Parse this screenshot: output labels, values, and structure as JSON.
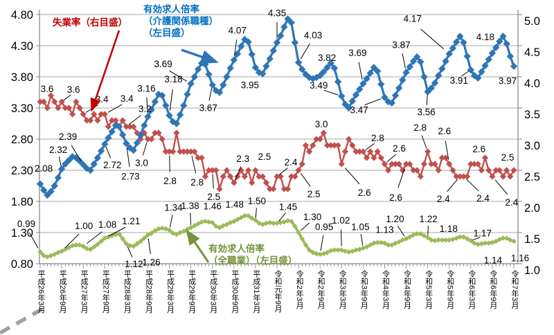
{
  "legend": {
    "unemployment": {
      "label": "失業率（右目盛）",
      "color": "#C00000"
    },
    "care_ratio": {
      "lines": [
        "有効求人倍率",
        "（介護関係職種）",
        "（左目盛）"
      ],
      "color": "#0070C0"
    },
    "all_jobs_ratio": {
      "lines": [
        "有効求人倍率",
        "（全職業）（左目盛）"
      ],
      "color": "#76923C"
    }
  },
  "chart_data": {
    "type": "line",
    "grid": true,
    "months_total": 133,
    "x_tick_labels": [
      "平成26年3月",
      "平成26年9月",
      "平成27年3月",
      "平成27年9月",
      "平成28年3月",
      "平成28年9月",
      "平成29年3月",
      "平成29年9月",
      "平成30年3月",
      "平成30年9月",
      "平成31年3月",
      "令和元年9月",
      "令和2年3月",
      "令和2年9月",
      "令和3年3月",
      "令和3年9月",
      "令和4年3月",
      "令和4年9月",
      "令和5年3月",
      "令和5年9月",
      "令和6年3月",
      "令和6年9月",
      "令和7年3月"
    ],
    "x_tick_month_indices": [
      0,
      6,
      12,
      18,
      24,
      30,
      36,
      42,
      48,
      54,
      60,
      66,
      72,
      78,
      84,
      90,
      96,
      102,
      108,
      114,
      120,
      126,
      132
    ],
    "left_axis": {
      "min": 0.8,
      "max": 4.8,
      "step": 0.5,
      "ticks": [
        "4.80",
        "4.30",
        "3.80",
        "3.30",
        "2.80",
        "2.30",
        "1.80",
        "1.30",
        "0.80"
      ]
    },
    "right_axis": {
      "min": 1.0,
      "max": 5.0,
      "step": 0.5,
      "ticks": [
        "5.0",
        "4.5",
        "4.0",
        "3.5",
        "3.0",
        "2.5",
        "2.0",
        "1.5",
        "1.0"
      ]
    },
    "series": [
      {
        "name": "有効求人倍率（介護関係職種）（左目盛）",
        "axis": "left",
        "color": "#2E75B6",
        "marker": "diamond",
        "values": [
          2.08,
          1.98,
          1.9,
          1.96,
          2.05,
          2.18,
          2.32,
          2.4,
          2.46,
          2.52,
          2.5,
          2.45,
          2.39,
          2.33,
          2.3,
          2.4,
          2.5,
          2.61,
          2.72,
          2.82,
          2.92,
          3.02,
          3.0,
          2.87,
          2.73,
          2.66,
          2.62,
          2.74,
          2.87,
          3.02,
          3.16,
          3.27,
          3.4,
          3.52,
          3.5,
          3.34,
          3.18,
          3.08,
          3.05,
          3.19,
          3.34,
          3.52,
          3.69,
          3.8,
          3.92,
          4.02,
          4.0,
          3.84,
          3.67,
          3.58,
          3.55,
          3.67,
          3.8,
          3.94,
          4.07,
          4.17,
          4.29,
          4.4,
          4.36,
          4.16,
          3.95,
          3.87,
          3.85,
          3.97,
          4.09,
          4.22,
          4.35,
          4.46,
          4.6,
          4.73,
          4.67,
          4.35,
          4.03,
          3.92,
          3.84,
          3.79,
          3.77,
          3.79,
          3.82,
          3.88,
          3.95,
          4.02,
          3.94,
          3.72,
          3.49,
          3.36,
          3.3,
          3.41,
          3.51,
          3.6,
          3.69,
          3.77,
          3.86,
          3.95,
          3.89,
          3.68,
          3.47,
          3.4,
          3.38,
          3.5,
          3.62,
          3.75,
          3.87,
          3.96,
          4.05,
          4.12,
          4.04,
          3.8,
          3.56,
          3.62,
          3.7,
          3.82,
          3.93,
          4.05,
          4.17,
          4.26,
          4.36,
          4.45,
          4.35,
          4.13,
          3.91,
          3.82,
          3.78,
          3.88,
          3.98,
          4.08,
          4.18,
          4.27,
          4.37,
          4.45,
          4.33,
          4.13,
          3.97
        ],
        "labels": [
          {
            "i": 0,
            "v": "2.08",
            "dx": 5,
            "dy": -18
          },
          {
            "i": 6,
            "v": "2.32",
            "dx": -5,
            "dy": -23
          },
          {
            "i": 12,
            "v": "2.39",
            "dx": -22,
            "dy": -36
          },
          {
            "i": 18,
            "v": "2.72",
            "dx": 11,
            "dy": 26
          },
          {
            "i": 24,
            "v": "2.73",
            "dx": 6,
            "dy": 43
          },
          {
            "i": 30,
            "v": "3.16",
            "dx": -2,
            "dy": -36
          },
          {
            "i": 36,
            "v": "3.18",
            "dx": 6,
            "dy": -48
          },
          {
            "i": 42,
            "v": "3.69",
            "dx": -40,
            "dy": -24
          },
          {
            "i": 48,
            "v": "3.67",
            "dx": -6,
            "dy": 29
          },
          {
            "i": 54,
            "v": "4.07",
            "dx": 5,
            "dy": -38
          },
          {
            "i": 60,
            "v": "3.95",
            "dx": -8,
            "dy": 21
          },
          {
            "i": 66,
            "v": "4.35",
            "dx": 0,
            "dy": -38
          },
          {
            "i": 72,
            "v": "4.03",
            "dx": 21,
            "dy": -35
          },
          {
            "i": 78,
            "v": "3.82",
            "dx": 10,
            "dy": -21
          },
          {
            "i": 84,
            "v": "3.49",
            "dx": -33,
            "dy": -11
          },
          {
            "i": 90,
            "v": "3.69",
            "dx": -8,
            "dy": -40
          },
          {
            "i": 96,
            "v": "3.47",
            "dx": -37,
            "dy": 14
          },
          {
            "i": 102,
            "v": "3.87",
            "dx": -7,
            "dy": -35
          },
          {
            "i": 108,
            "v": "3.56",
            "dx": -2,
            "dy": 25
          },
          {
            "i": 114,
            "v": "4.17",
            "dx": -53,
            "dy": -46
          },
          {
            "i": 120,
            "v": "3.91",
            "dx": -17,
            "dy": 11
          },
          {
            "i": 126,
            "v": "4.18",
            "dx": -10,
            "dy": -19
          },
          {
            "i": 132,
            "v": "3.97",
            "dx": -9,
            "dy": 17
          }
        ]
      },
      {
        "name": "失業率（右目盛）",
        "axis": "right",
        "color": "#C0504D",
        "marker": "diamond",
        "values": [
          3.6,
          3.6,
          3.5,
          3.7,
          3.6,
          3.5,
          3.6,
          3.5,
          3.5,
          3.4,
          3.6,
          3.5,
          3.4,
          3.3,
          3.3,
          3.4,
          3.3,
          3.4,
          3.4,
          3.2,
          3.3,
          3.3,
          3.2,
          3.3,
          3.2,
          3.2,
          3.2,
          3.1,
          3.0,
          3.1,
          3.0,
          3.0,
          3.1,
          3.1,
          3.0,
          2.8,
          2.8,
          2.8,
          3.1,
          2.8,
          2.8,
          2.8,
          2.8,
          2.8,
          2.7,
          2.7,
          2.4,
          2.5,
          2.5,
          2.5,
          2.2,
          2.4,
          2.5,
          2.4,
          2.3,
          2.4,
          2.5,
          2.4,
          2.5,
          2.3,
          2.5,
          2.4,
          2.4,
          2.3,
          2.2,
          2.2,
          2.4,
          2.4,
          2.2,
          2.2,
          2.4,
          2.4,
          2.5,
          2.6,
          2.9,
          2.8,
          2.9,
          3.0,
          3.0,
          3.1,
          2.9,
          2.9,
          2.9,
          2.9,
          2.6,
          2.8,
          3.0,
          2.9,
          2.8,
          2.8,
          2.8,
          2.7,
          2.8,
          2.7,
          2.8,
          2.7,
          2.6,
          2.5,
          2.6,
          2.6,
          2.6,
          2.5,
          2.6,
          2.6,
          2.5,
          2.5,
          2.4,
          2.6,
          2.8,
          2.6,
          2.6,
          2.5,
          2.7,
          2.7,
          2.6,
          2.5,
          2.4,
          2.4,
          2.4,
          2.4,
          2.6,
          2.6,
          2.6,
          2.5,
          2.7,
          2.5,
          2.4,
          2.5,
          2.5,
          2.4,
          2.5,
          2.4,
          2.5
        ],
        "labels": [
          {
            "i": 0,
            "v": "3.6",
            "dx": 10,
            "dy": -14
          },
          {
            "i": 6,
            "v": "3.6",
            "dx": 17,
            "dy": -13
          },
          {
            "i": 12,
            "v": "3.4",
            "dx": 27,
            "dy": -17
          },
          {
            "i": 18,
            "v": "3.4",
            "dx": 32,
            "dy": -18
          },
          {
            "i": 24,
            "v": "3.2",
            "dx": 27,
            "dy": -21
          },
          {
            "i": 30,
            "v": "3.0",
            "dx": -9,
            "dy": 30
          },
          {
            "i": 36,
            "v": "2.8",
            "dx": 1,
            "dy": 38
          },
          {
            "i": 42,
            "v": "2.8",
            "dx": 9,
            "dy": 40
          },
          {
            "i": 48,
            "v": "2.5",
            "dx": 2,
            "dy": 34
          },
          {
            "i": 54,
            "v": "2.3",
            "dx": 13,
            "dy": -30
          },
          {
            "i": 60,
            "v": "2.5",
            "dx": 13,
            "dy": -15
          },
          {
            "i": 66,
            "v": "2.4",
            "dx": 20,
            "dy": -16
          },
          {
            "i": 72,
            "v": "2.5",
            "dx": 22,
            "dy": 30
          },
          {
            "i": 78,
            "v": "3.0",
            "dx": 2,
            "dy": -17
          },
          {
            "i": 84,
            "v": "2.6",
            "dx": 33,
            "dy": 37
          },
          {
            "i": 90,
            "v": "2.8",
            "dx": 21,
            "dy": -15
          },
          {
            "i": 96,
            "v": "2.6",
            "dx": 21,
            "dy": -18
          },
          {
            "i": 102,
            "v": "2.6",
            "dx": -15,
            "dy": 44
          },
          {
            "i": 108,
            "v": "2.8",
            "dx": -11,
            "dy": -30
          },
          {
            "i": 114,
            "v": "2.6",
            "dx": -7,
            "dy": -43
          },
          {
            "i": 117,
            "v": "2.4",
            "dx": -24,
            "dy": 28
          },
          {
            "i": 118,
            "v": "2.4",
            "dx": 28,
            "dy": 27
          },
          {
            "i": 120,
            "v": "2.6",
            "dx": 12,
            "dy": -17
          },
          {
            "i": 126,
            "v": "2.4",
            "dx": 28,
            "dy": 33
          },
          {
            "i": 132,
            "v": "2.5",
            "dx": -9,
            "dy": -14
          }
        ]
      },
      {
        "name": "有効求人倍率（全職業）（左目盛）",
        "axis": "left",
        "color": "#9BBB59",
        "marker": "diamond",
        "values": [
          0.99,
          0.93,
          0.91,
          0.93,
          0.95,
          0.98,
          1.0,
          1.03,
          1.06,
          1.09,
          1.1,
          1.1,
          1.08,
          1.04,
          1.03,
          1.07,
          1.11,
          1.16,
          1.21,
          1.23,
          1.25,
          1.27,
          1.28,
          1.2,
          1.12,
          1.09,
          1.08,
          1.12,
          1.16,
          1.21,
          1.26,
          1.29,
          1.33,
          1.36,
          1.37,
          1.36,
          1.34,
          1.29,
          1.27,
          1.3,
          1.32,
          1.35,
          1.38,
          1.41,
          1.44,
          1.47,
          1.48,
          1.47,
          1.46,
          1.4,
          1.38,
          1.41,
          1.43,
          1.46,
          1.48,
          1.51,
          1.54,
          1.57,
          1.57,
          1.53,
          1.5,
          1.45,
          1.43,
          1.45,
          1.46,
          1.45,
          1.45,
          1.46,
          1.47,
          1.49,
          1.48,
          1.4,
          1.3,
          1.2,
          1.1,
          1.02,
          0.98,
          0.96,
          0.95,
          0.96,
          0.98,
          1.01,
          1.02,
          1.02,
          1.02,
          1.0,
          0.99,
          1.0,
          1.02,
          1.03,
          1.05,
          1.07,
          1.1,
          1.13,
          1.14,
          1.14,
          1.13,
          1.1,
          1.1,
          1.13,
          1.15,
          1.18,
          1.2,
          1.23,
          1.26,
          1.28,
          1.28,
          1.25,
          1.22,
          1.18,
          1.17,
          1.18,
          1.18,
          1.18,
          1.18,
          1.19,
          1.21,
          1.23,
          1.23,
          1.2,
          1.17,
          1.13,
          1.11,
          1.12,
          1.13,
          1.13,
          1.14,
          1.16,
          1.19,
          1.21,
          1.21,
          1.18,
          1.16
        ],
        "labels": [
          {
            "i": 0,
            "v": "0.99",
            "dx": -20,
            "dy": -36
          },
          {
            "i": 6,
            "v": "1.00",
            "dx": 32,
            "dy": -32
          },
          {
            "i": 12,
            "v": "1.08",
            "dx": 35,
            "dy": -27
          },
          {
            "i": 18,
            "v": "1.21",
            "dx": 38,
            "dy": -20
          },
          {
            "i": 24,
            "v": "1.12",
            "dx": 11,
            "dy": 25
          },
          {
            "i": 30,
            "v": "1.26",
            "dx": 5,
            "dy": 35
          },
          {
            "i": 36,
            "v": "1.34",
            "dx": 6,
            "dy": -28
          },
          {
            "i": 42,
            "v": "1.38",
            "dx": -1,
            "dy": -27
          },
          {
            "i": 48,
            "v": "1.46",
            "dx": 0,
            "dy": -19
          },
          {
            "i": 54,
            "v": "1.48",
            "dx": 1,
            "dy": -20
          },
          {
            "i": 60,
            "v": "1.50",
            "dx": 2,
            "dy": -23
          },
          {
            "i": 66,
            "v": "1.45",
            "dx": 16,
            "dy": -19
          },
          {
            "i": 72,
            "v": "1.30",
            "dx": 20,
            "dy": -18
          },
          {
            "i": 78,
            "v": "0.95",
            "dx": 6,
            "dy": -35
          },
          {
            "i": 84,
            "v": "1.02",
            "dx": -1,
            "dy": -38
          },
          {
            "i": 90,
            "v": "1.05",
            "dx": -4,
            "dy": -26
          },
          {
            "i": 96,
            "v": "1.13",
            "dx": 0,
            "dy": -15
          },
          {
            "i": 102,
            "v": "1.20",
            "dx": -16,
            "dy": -24
          },
          {
            "i": 108,
            "v": "1.22",
            "dx": 1,
            "dy": -22
          },
          {
            "i": 114,
            "v": "1.18",
            "dx": -1,
            "dy": -12
          },
          {
            "i": 120,
            "v": "1.17",
            "dx": 17,
            "dy": -6
          },
          {
            "i": 126,
            "v": "1.14",
            "dx": 1,
            "dy": 21
          },
          {
            "i": 132,
            "v": "1.16",
            "dx": 9,
            "dy": 20
          }
        ]
      }
    ]
  }
}
